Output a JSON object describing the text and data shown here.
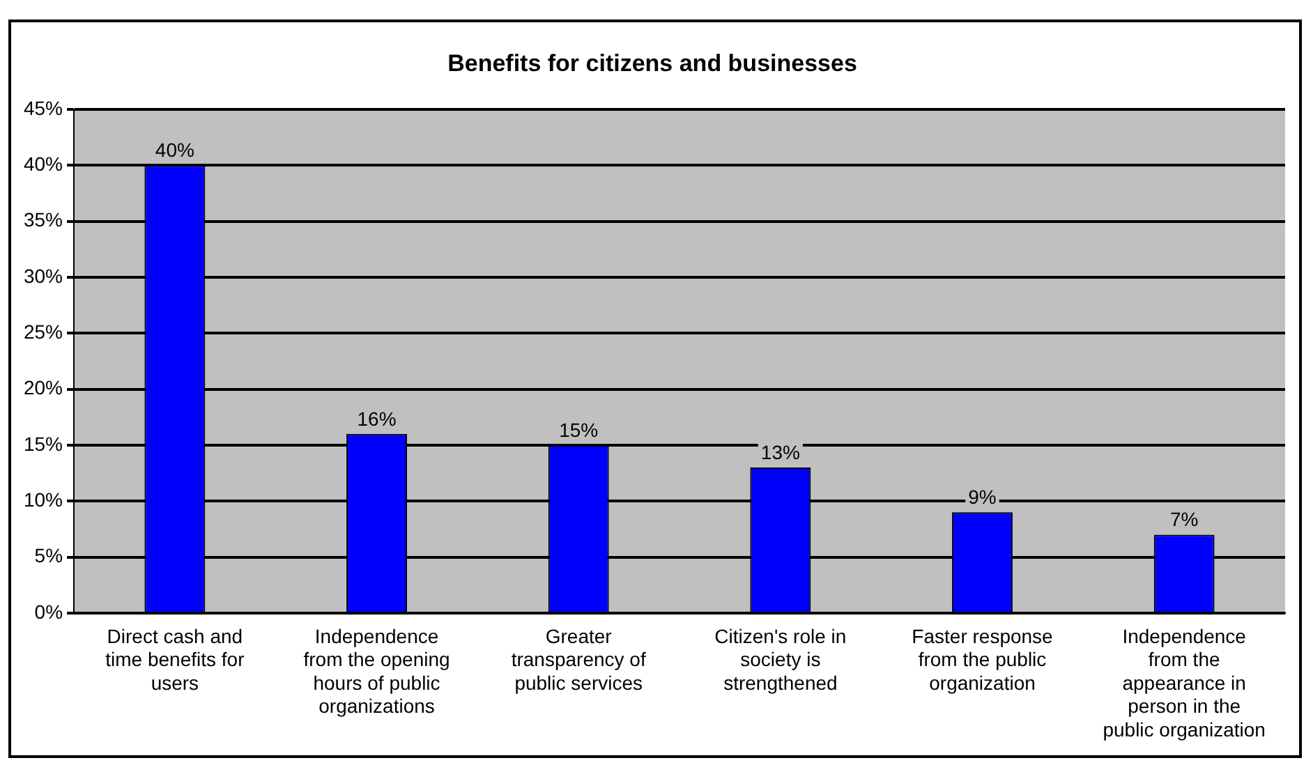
{
  "chart_data": {
    "type": "bar",
    "title": "Benefits for citizens and businesses",
    "categories": [
      "Direct cash and time benefits for users",
      "Independence from the opening hours of public organizations",
      "Greater transparency of public services",
      "Citizen's role in society is strengthened",
      "Faster response from the public organization",
      "Independence from the appearance in person in the public organization"
    ],
    "values": [
      40,
      16,
      15,
      13,
      9,
      7
    ],
    "value_labels": [
      "40%",
      "16%",
      "15%",
      "13%",
      "9%",
      "7%"
    ],
    "color": "#0000ff",
    "ylim": [
      0,
      45
    ],
    "yticks": [
      {
        "value": 0,
        "label": "0%"
      },
      {
        "value": 5,
        "label": "5%"
      },
      {
        "value": 10,
        "label": "10%"
      },
      {
        "value": 15,
        "label": "15%"
      },
      {
        "value": 20,
        "label": "20%"
      },
      {
        "value": 25,
        "label": "25%"
      },
      {
        "value": 30,
        "label": "30%"
      },
      {
        "value": 35,
        "label": "35%"
      },
      {
        "value": 40,
        "label": "40%"
      },
      {
        "value": 45,
        "label": "45%"
      }
    ],
    "grid": "y",
    "legend": false
  }
}
